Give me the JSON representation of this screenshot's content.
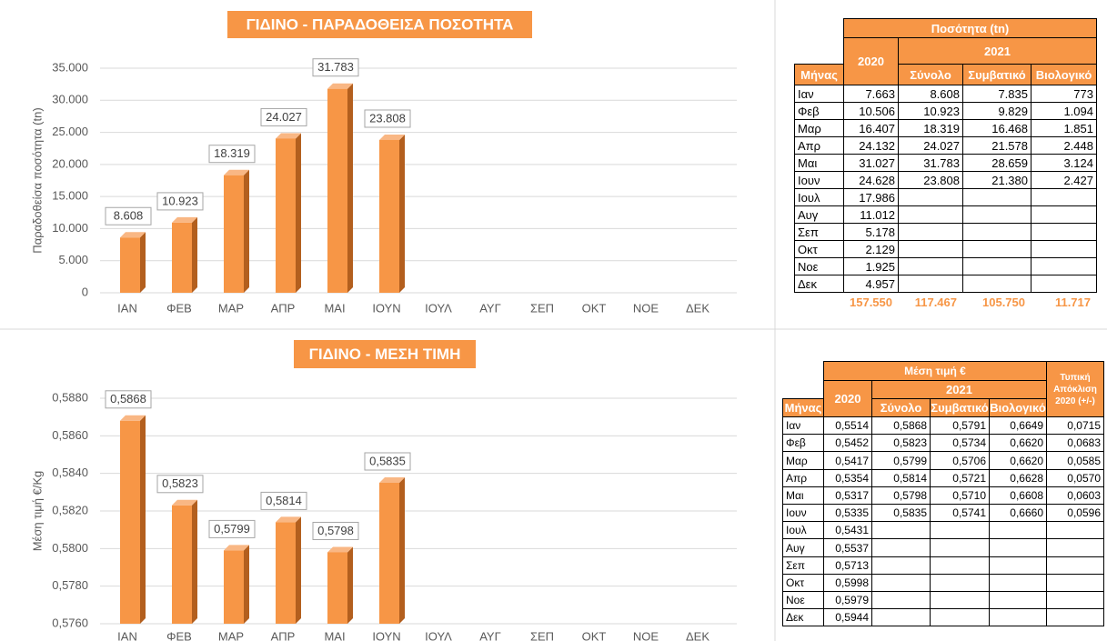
{
  "chart_data": [
    {
      "type": "bar",
      "title": "ΓΙΔΙΝΟ - ΠΑΡΑΔΟΘΕΙΣΑ ΠΟΣΟΤΗΤΑ",
      "y_label": "Παραδοθείσα ποσότητα (tn)",
      "categories": [
        "ΙΑΝ",
        "ΦΕΒ",
        "ΜΑΡ",
        "ΑΠΡ",
        "ΜΑΙ",
        "ΙΟΥΝ",
        "ΙΟΥΛ",
        "ΑΥΓ",
        "ΣΕΠ",
        "ΟΚΤ",
        "ΝΟΕ",
        "ΔΕΚ"
      ],
      "values": [
        8608,
        10923,
        18319,
        24027,
        31783,
        23808,
        null,
        null,
        null,
        null,
        null,
        null
      ],
      "value_labels": [
        "8.608",
        "10.923",
        "18.319",
        "24.027",
        "31.783",
        "23.808",
        null,
        null,
        null,
        null,
        null,
        null
      ],
      "color": "#f79646",
      "ylim": [
        0,
        35000
      ],
      "yticks": [
        0,
        {
          "value": 5000,
          "label": "5.000"
        },
        {
          "value": 10000,
          "label": "10.000"
        },
        {
          "value": 15000,
          "label": "15.000"
        },
        {
          "value": 20000,
          "label": "20.000"
        },
        {
          "value": 25000,
          "label": "25.000"
        },
        {
          "value": 30000,
          "label": "30.000"
        },
        {
          "value": 35000,
          "label": "35.000"
        }
      ],
      "grid": true
    },
    {
      "type": "bar",
      "title": "ΓΙΔΙΝΟ - ΜΕΣΗ ΤΙΜΗ",
      "y_label": "Μέση τιμή €/Kg",
      "categories": [
        "ΙΑΝ",
        "ΦΕΒ",
        "ΜΑΡ",
        "ΑΠΡ",
        "ΜΑΙ",
        "ΙΟΥΝ",
        "ΙΟΥΛ",
        "ΑΥΓ",
        "ΣΕΠ",
        "ΟΚΤ",
        "ΝΟΕ",
        "ΔΕΚ"
      ],
      "values": [
        0.5868,
        0.5823,
        0.5799,
        0.5814,
        0.5798,
        0.5835,
        null,
        null,
        null,
        null,
        null,
        null
      ],
      "value_labels": [
        "0,5868",
        "0,5823",
        "0,5799",
        "0,5814",
        "0,5798",
        "0,5835",
        null,
        null,
        null,
        null,
        null,
        null
      ],
      "color": "#f79646",
      "ylim": [
        0.576,
        0.588
      ],
      "yticks": [
        {
          "value": 0.576,
          "label": "0,5760"
        },
        {
          "value": 0.578,
          "label": "0,5780"
        },
        {
          "value": 0.58,
          "label": "0,5800"
        },
        {
          "value": 0.582,
          "label": "0,5820"
        },
        {
          "value": 0.584,
          "label": "0,5840"
        },
        {
          "value": 0.586,
          "label": "0,5860"
        },
        {
          "value": 0.588,
          "label": "0,5880"
        }
      ],
      "grid": true
    }
  ],
  "quantity_table": {
    "header": "Ποσότητα (tn)",
    "year_2020": "2020",
    "year_2021": "2021",
    "columns": [
      "Μήνας",
      "Σύνολο",
      "Συμβατικό",
      "Βιολογικό"
    ],
    "rows": [
      [
        "Ιαν",
        "7.663",
        "8.608",
        "7.835",
        "773"
      ],
      [
        "Φεβ",
        "10.506",
        "10.923",
        "9.829",
        "1.094"
      ],
      [
        "Μαρ",
        "16.407",
        "18.319",
        "16.468",
        "1.851"
      ],
      [
        "Απρ",
        "24.132",
        "24.027",
        "21.578",
        "2.448"
      ],
      [
        "Μαι",
        "31.027",
        "31.783",
        "28.659",
        "3.124"
      ],
      [
        "Ιουν",
        "24.628",
        "23.808",
        "21.380",
        "2.427"
      ],
      [
        "Ιουλ",
        "17.986"
      ],
      [
        "Αυγ",
        "11.012"
      ],
      [
        "Σεπ",
        "5.178"
      ],
      [
        "Οκτ",
        "2.129"
      ],
      [
        "Νοε",
        "1.925"
      ],
      [
        "Δεκ",
        "4.957"
      ]
    ],
    "totals": [
      "157.550",
      "117.467",
      "105.750",
      "11.717"
    ]
  },
  "price_table": {
    "header": "Μέση τιμή €",
    "std_header": "Τυπική Απόκλιση 2020 (+/-)",
    "year_2020": "2020",
    "year_2021": "2021",
    "columns": [
      "Μήνας",
      "Σύνολο",
      "Συμβατικό",
      "Βιολογικό"
    ],
    "rows": [
      [
        "Ιαν",
        "0,5514",
        "0,5868",
        "0,5791",
        "0,6649",
        "0,0715"
      ],
      [
        "Φεβ",
        "0,5452",
        "0,5823",
        "0,5734",
        "0,6620",
        "0,0683"
      ],
      [
        "Μαρ",
        "0,5417",
        "0,5799",
        "0,5706",
        "0,6620",
        "0,0585"
      ],
      [
        "Απρ",
        "0,5354",
        "0,5814",
        "0,5721",
        "0,6628",
        "0,0570"
      ],
      [
        "Μαι",
        "0,5317",
        "0,5798",
        "0,5710",
        "0,6608",
        "0,0603"
      ],
      [
        "Ιουν",
        "0,5335",
        "0,5835",
        "0,5741",
        "0,6660",
        "0,0596"
      ],
      [
        "Ιουλ",
        "0,5431"
      ],
      [
        "Αυγ",
        "0,5537"
      ],
      [
        "Σεπ",
        "0,5713"
      ],
      [
        "Οκτ",
        "0,5998"
      ],
      [
        "Νοε",
        "0,5979"
      ],
      [
        "Δεκ",
        "0,5944"
      ]
    ]
  }
}
